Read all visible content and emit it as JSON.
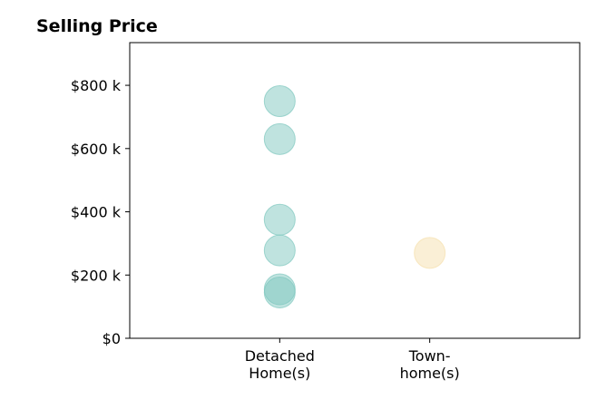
{
  "chart_data": {
    "type": "scatter",
    "title": "Selling Price",
    "xlabel": "",
    "ylabel": "",
    "categories": [
      [
        "Detached",
        "Home(s)"
      ],
      [
        "Town-",
        "home(s)"
      ]
    ],
    "yticks": [
      {
        "value": 0,
        "label": "$0"
      },
      {
        "value": 200,
        "label": "$200 k"
      },
      {
        "value": 400,
        "label": "$400 k"
      },
      {
        "value": 600,
        "label": "$600 k"
      },
      {
        "value": 800,
        "label": "$800 k"
      }
    ],
    "ylim": [
      0,
      935
    ],
    "xlim": [
      -1,
      2
    ],
    "grid": false,
    "series": [
      {
        "category_index": 0,
        "color": "#7fc7bf",
        "values": [
          750,
          630,
          375,
          278,
          155,
          145
        ]
      },
      {
        "category_index": 1,
        "color": "#f5dfad",
        "values": [
          270
        ]
      }
    ]
  }
}
